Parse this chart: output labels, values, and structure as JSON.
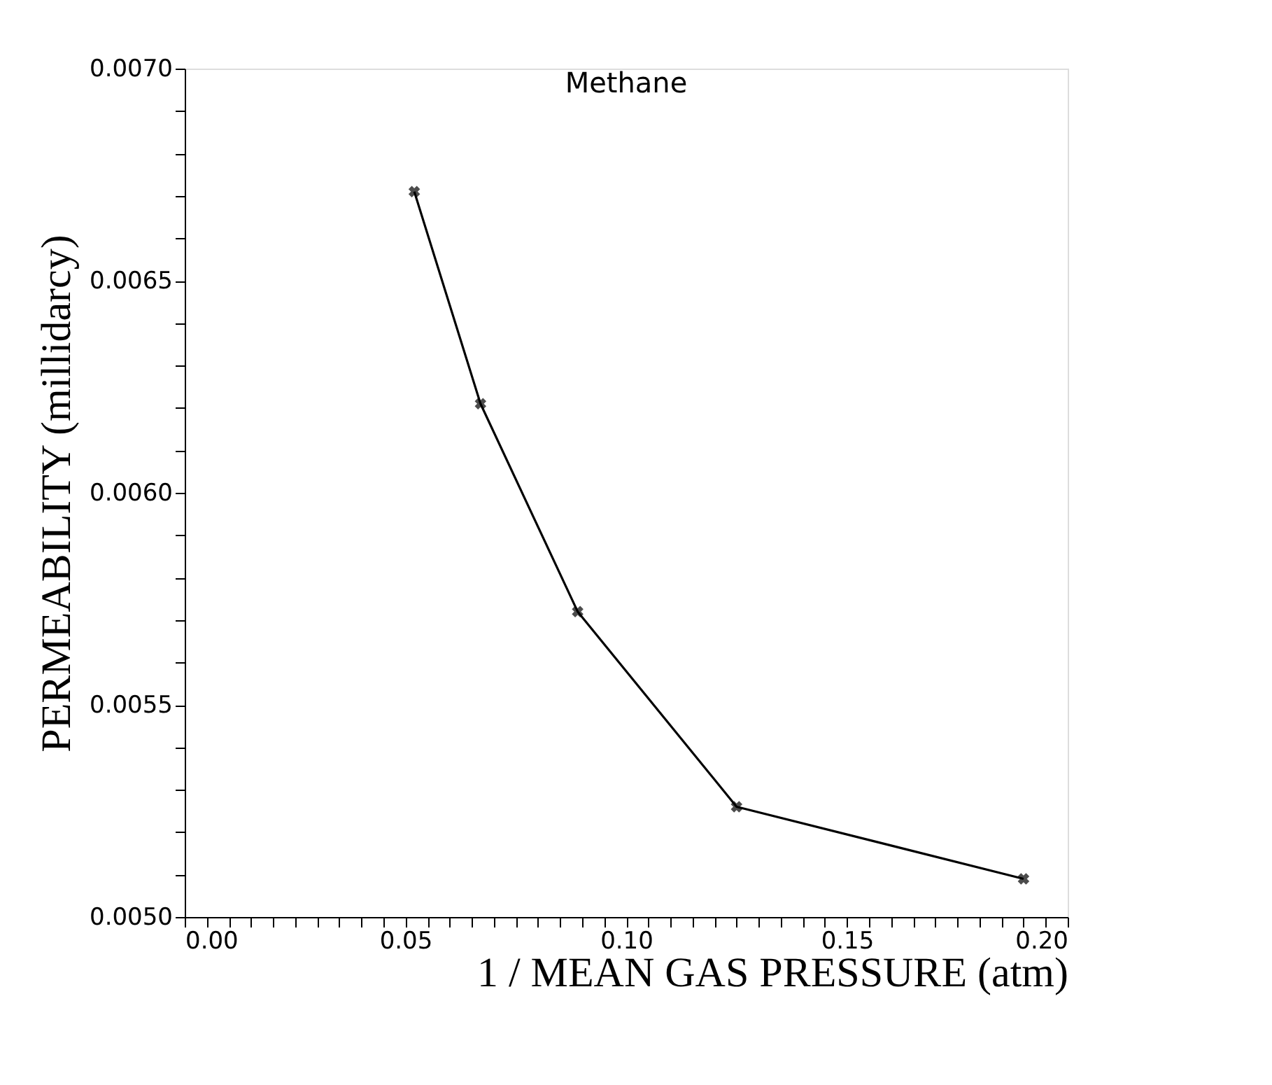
{
  "chart_data": {
    "type": "line",
    "title": "Methane",
    "xlabel": "1 / MEAN GAS PRESSURE (atm)",
    "ylabel": "PERMEABILITY (millidarcy)",
    "x": [
      0.052,
      0.067,
      0.089,
      0.125,
      0.19
    ],
    "series": [
      {
        "color": "#000000",
        "values": [
          0.00671,
          0.00621,
          0.00572,
          0.00526,
          0.00509
        ]
      }
    ],
    "xlim": [
      0.0,
      0.2
    ],
    "ylim": [
      0.005,
      0.007
    ],
    "xticks": [
      {
        "value": 0.0,
        "label": "0.00"
      },
      {
        "value": 0.005,
        "label": null
      },
      {
        "value": 0.01,
        "label": null
      },
      {
        "value": 0.015,
        "label": null
      },
      {
        "value": 0.02,
        "label": null
      },
      {
        "value": 0.025,
        "label": null
      },
      {
        "value": 0.03,
        "label": null
      },
      {
        "value": 0.035,
        "label": null
      },
      {
        "value": 0.04,
        "label": null
      },
      {
        "value": 0.045,
        "label": null
      },
      {
        "value": 0.05,
        "label": "0.05"
      },
      {
        "value": 0.055,
        "label": null
      },
      {
        "value": 0.06,
        "label": null
      },
      {
        "value": 0.065,
        "label": null
      },
      {
        "value": 0.07,
        "label": null
      },
      {
        "value": 0.075,
        "label": null
      },
      {
        "value": 0.08,
        "label": null
      },
      {
        "value": 0.085,
        "label": null
      },
      {
        "value": 0.09,
        "label": null
      },
      {
        "value": 0.095,
        "label": null
      },
      {
        "value": 0.1,
        "label": "0.10"
      },
      {
        "value": 0.105,
        "label": null
      },
      {
        "value": 0.11,
        "label": null
      },
      {
        "value": 0.115,
        "label": null
      },
      {
        "value": 0.12,
        "label": null
      },
      {
        "value": 0.125,
        "label": null
      },
      {
        "value": 0.13,
        "label": null
      },
      {
        "value": 0.135,
        "label": null
      },
      {
        "value": 0.14,
        "label": null
      },
      {
        "value": 0.145,
        "label": null
      },
      {
        "value": 0.15,
        "label": "0.15"
      },
      {
        "value": 0.155,
        "label": null
      },
      {
        "value": 0.16,
        "label": null
      },
      {
        "value": 0.165,
        "label": null
      },
      {
        "value": 0.17,
        "label": null
      },
      {
        "value": 0.175,
        "label": null
      },
      {
        "value": 0.18,
        "label": null
      },
      {
        "value": 0.185,
        "label": null
      },
      {
        "value": 0.19,
        "label": null
      },
      {
        "value": 0.195,
        "label": null
      },
      {
        "value": 0.2,
        "label": "0.20"
      }
    ],
    "yticks": [
      {
        "value": 0.005,
        "label": "0.0050"
      },
      {
        "value": 0.0051,
        "label": null
      },
      {
        "value": 0.0052,
        "label": null
      },
      {
        "value": 0.0053,
        "label": null
      },
      {
        "value": 0.0054,
        "label": null
      },
      {
        "value": 0.0055,
        "label": "0.0055"
      },
      {
        "value": 0.0056,
        "label": null
      },
      {
        "value": 0.0057,
        "label": null
      },
      {
        "value": 0.0058,
        "label": null
      },
      {
        "value": 0.0059,
        "label": null
      },
      {
        "value": 0.006,
        "label": "0.0060"
      },
      {
        "value": 0.0061,
        "label": null
      },
      {
        "value": 0.0062,
        "label": null
      },
      {
        "value": 0.0063,
        "label": null
      },
      {
        "value": 0.0064,
        "label": null
      },
      {
        "value": 0.0065,
        "label": "0.0065"
      },
      {
        "value": 0.0066,
        "label": null
      },
      {
        "value": 0.0067,
        "label": null
      },
      {
        "value": 0.0068,
        "label": null
      },
      {
        "value": 0.0069,
        "label": null
      },
      {
        "value": 0.007,
        "label": "0.0070"
      }
    ],
    "marker": "cross",
    "line_style": "solid",
    "grid": false
  }
}
